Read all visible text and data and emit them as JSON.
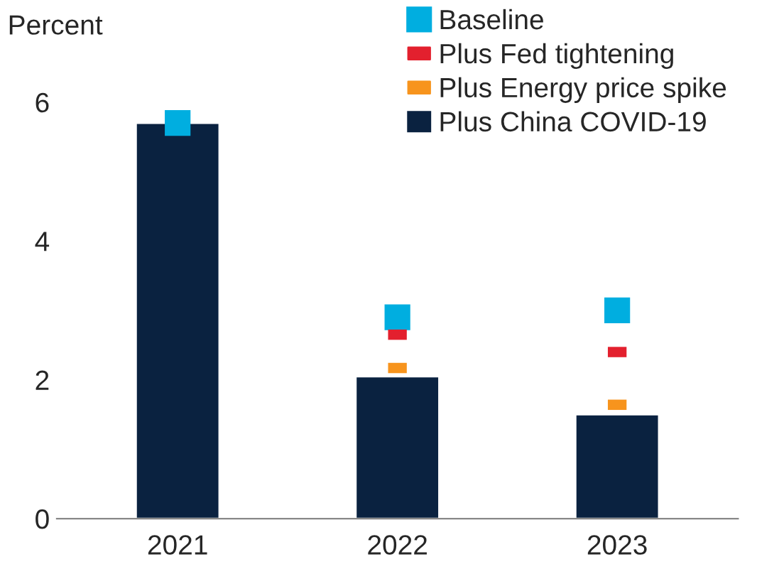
{
  "chart_data": {
    "type": "bar",
    "ylabel": "Percent",
    "categories": [
      "2021",
      "2022",
      "2023"
    ],
    "ylim": [
      0,
      6
    ],
    "yticks": [
      0,
      2,
      4,
      6
    ],
    "grid": false,
    "legend": "top right",
    "series": [
      {
        "name": "Baseline",
        "type": "scatter",
        "marker": "square",
        "color": "#00aee0",
        "values": [
          5.7,
          2.9,
          3.0
        ]
      },
      {
        "name": "Plus Fed tightening",
        "type": "scatter",
        "marker": "square",
        "color": "#e3202e",
        "values": [
          null,
          2.65,
          2.4
        ]
      },
      {
        "name": "Plus Energy price spike",
        "type": "scatter",
        "marker": "square",
        "color": "#f7941d",
        "values": [
          null,
          2.17,
          1.64
        ]
      },
      {
        "name": "Plus China COVID-19",
        "color": "#0a2240",
        "values": [
          5.7,
          2.05,
          1.5
        ]
      }
    ]
  }
}
